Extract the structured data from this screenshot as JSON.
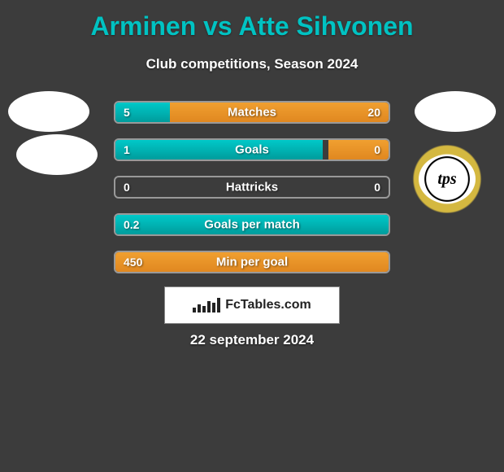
{
  "title": "Arminen vs Atte Sihvonen",
  "subtitle": "Club competitions, Season 2024",
  "date": "22 september 2024",
  "footer_brand": "FcTables.com",
  "colors": {
    "title": "#00c2c2",
    "bar_left_top": "#00c9c9",
    "bar_left_bottom": "#009c9c",
    "bar_right_top": "#f0a030",
    "bar_right_bottom": "#e08820",
    "background": "#3c3c3c"
  },
  "logos": {
    "right2_text": "tps"
  },
  "stats": [
    {
      "label": "Matches",
      "left_value": "5",
      "right_value": "20",
      "left_pct": 20,
      "right_pct": 80
    },
    {
      "label": "Goals",
      "left_value": "1",
      "right_value": "0",
      "left_pct": 76,
      "right_pct": 22
    },
    {
      "label": "Hattricks",
      "left_value": "0",
      "right_value": "0",
      "left_pct": 0,
      "right_pct": 0
    },
    {
      "label": "Goals per match",
      "left_value": "0.2",
      "right_value": "",
      "left_pct": 100,
      "right_pct": 0
    },
    {
      "label": "Min per goal",
      "left_value": "450",
      "right_value": "",
      "left_pct": 0,
      "right_pct": 100
    }
  ]
}
